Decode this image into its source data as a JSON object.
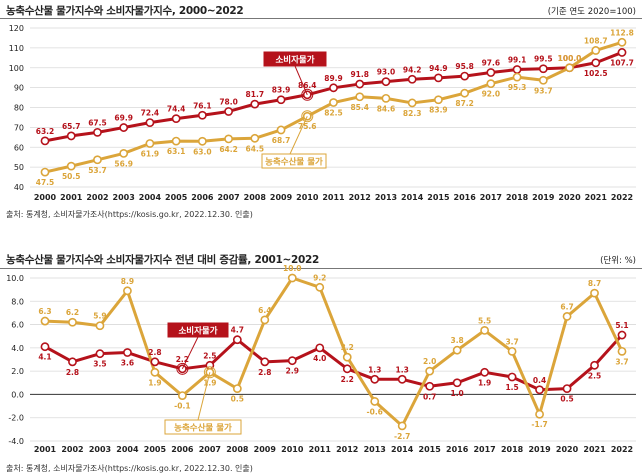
{
  "colors": {
    "cpi": "#b5121b",
    "agri": "#dba53a",
    "grid": "#d9d9d9"
  },
  "chart_data": [
    {
      "type": "line",
      "title": "농축수산물 물가지수와 소비자물가지수, 2000~2022",
      "unit": "(기준 연도 2020=100)",
      "source": "출처: 통계청, 소비자물가조사(https://kosis.go.kr, 2022.12.30. 인출)",
      "ylim": [
        40,
        120
      ],
      "yticks": [
        40,
        50,
        60,
        70,
        80,
        90,
        100,
        110,
        120
      ],
      "categories": [
        "2000",
        "2001",
        "2002",
        "2003",
        "2004",
        "2005",
        "2006",
        "2007",
        "2008",
        "2009",
        "2010",
        "2011",
        "2012",
        "2013",
        "2014",
        "2015",
        "2016",
        "2017",
        "2018",
        "2019",
        "2020",
        "2021",
        "2022"
      ],
      "series": [
        {
          "name": "소비자물가",
          "key": "cpi",
          "values": [
            63.2,
            65.7,
            67.5,
            69.9,
            72.4,
            74.4,
            76.1,
            78.0,
            81.7,
            83.9,
            86.4,
            89.9,
            91.8,
            93.0,
            94.2,
            94.9,
            95.8,
            97.6,
            99.1,
            99.5,
            100.0,
            102.5,
            107.7
          ]
        },
        {
          "name": "농축수산물 물가",
          "key": "agri",
          "values": [
            47.5,
            50.5,
            53.7,
            56.9,
            61.9,
            63.1,
            63.0,
            64.2,
            64.5,
            68.7,
            75.6,
            82.5,
            85.4,
            84.6,
            82.3,
            83.9,
            87.2,
            92.0,
            95.3,
            93.7,
            100.0,
            108.7,
            112.8
          ]
        }
      ]
    },
    {
      "type": "line",
      "title": "농축수산물 물가지수와 소비자물가지수 전년 대비 증감률, 2001~2022",
      "unit": "(단위: %)",
      "source": "출처: 통계청, 소비자물가조사(https://kosis.go.kr, 2022.12.30. 인출)",
      "ylim": [
        -4,
        10
      ],
      "yticks": [
        -4.0,
        -2.0,
        0.0,
        2.0,
        4.0,
        6.0,
        8.0,
        10.0
      ],
      "categories": [
        "2001",
        "2002",
        "2003",
        "2004",
        "2005",
        "2006",
        "2007",
        "2008",
        "2009",
        "2010",
        "2011",
        "2012",
        "2013",
        "2014",
        "2015",
        "2016",
        "2017",
        "2018",
        "2019",
        "2020",
        "2021",
        "2022"
      ],
      "series": [
        {
          "name": "소비자물가",
          "key": "cpi",
          "values": [
            4.1,
            2.8,
            3.5,
            3.6,
            2.8,
            2.2,
            2.5,
            4.7,
            2.8,
            2.9,
            4.0,
            2.2,
            1.3,
            1.3,
            0.7,
            1.0,
            1.9,
            1.5,
            0.4,
            0.5,
            2.5,
            5.1
          ]
        },
        {
          "name": "농축수산물 물가",
          "key": "agri",
          "values": [
            6.3,
            6.2,
            5.9,
            8.9,
            1.9,
            -0.1,
            1.9,
            0.5,
            6.4,
            10.0,
            9.2,
            3.2,
            -0.6,
            -2.7,
            2.0,
            3.8,
            5.5,
            3.7,
            -1.7,
            6.7,
            8.7,
            3.7
          ]
        }
      ]
    }
  ]
}
